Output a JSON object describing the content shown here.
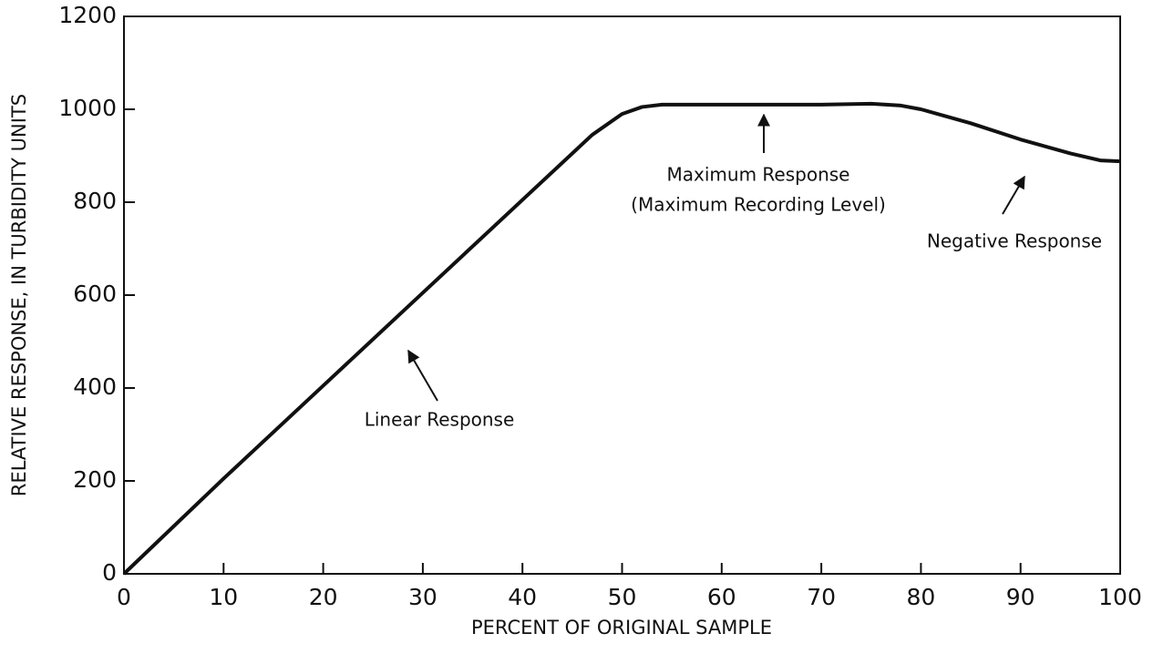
{
  "chart_data": {
    "type": "line",
    "x_label": "PERCENT OF ORIGINAL SAMPLE",
    "y_label": "RELATIVE RESPONSE, IN TURBIDITY UNITS",
    "x": [
      0,
      10,
      20,
      30,
      40,
      47,
      50,
      52,
      54,
      60,
      70,
      75,
      78,
      80,
      85,
      90,
      95,
      98,
      100
    ],
    "series": [
      {
        "color": "#111111",
        "values": [
          0,
          205,
          405,
          605,
          805,
          945,
          990,
          1005,
          1010,
          1010,
          1010,
          1012,
          1008,
          1000,
          970,
          935,
          905,
          890,
          888
        ]
      }
    ],
    "xlim": [
      0,
      100
    ],
    "ylim": [
      0,
      1200
    ],
    "xticks": [
      0,
      10,
      20,
      30,
      40,
      50,
      60,
      70,
      80,
      90,
      100
    ],
    "yticks": [
      0,
      200,
      400,
      600,
      800,
      1000,
      1200
    ],
    "annotations": [
      "Linear Response",
      "Maximum Response",
      "(Maximum Recording Level)",
      "Negative Response"
    ]
  }
}
